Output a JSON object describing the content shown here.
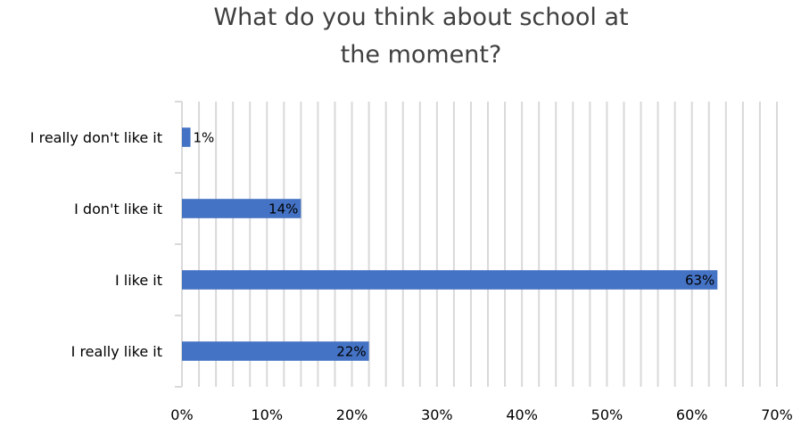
{
  "chart_data": {
    "type": "bar",
    "orientation": "horizontal",
    "title_lines": [
      "What do you think about school at",
      "the moment?"
    ],
    "categories": [
      "I really don't like it",
      "I don't like it",
      "I like it",
      "I really like it"
    ],
    "values": [
      1,
      14,
      63,
      22
    ],
    "data_labels": [
      "1%",
      "14%",
      "63%",
      "22%"
    ],
    "x_ticks": [
      "0%",
      "10%",
      "20%",
      "30%",
      "40%",
      "50%",
      "60%",
      "70%"
    ],
    "xlim": [
      0,
      70
    ],
    "x_minor_step": 2,
    "grid": true,
    "legend": "none",
    "colors": {
      "bar": "#4472c4",
      "grid": "#d9d9d9",
      "axis": "#d9d9d9"
    }
  }
}
